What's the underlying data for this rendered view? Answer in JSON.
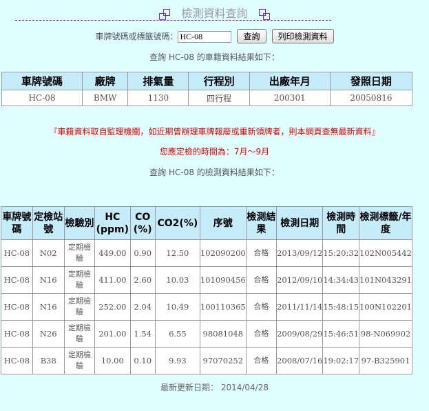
{
  "title": "檢測資料查詢",
  "accent_color": "#7722ee",
  "form": {
    "label": "車牌號碼或標籤號碼：",
    "input_value": "HC-08",
    "query_button": "查詢",
    "print_button": "列印檢測資料"
  },
  "registry_caption": "查詢 HC-08 的車籍資料結果如下：",
  "registry": {
    "headers": [
      "車牌號碼",
      "廠牌",
      "排氣量",
      "行程別",
      "出廠年月",
      "發照日期"
    ],
    "row": [
      "HC-08",
      "BMW",
      "1130",
      "四行程",
      "200301",
      "20050816"
    ]
  },
  "notice": "『車籍資料取自監理機關，如近期曾辦理車牌報廢或重新領牌者，則本網頁查無最新資料』",
  "due": "您應定檢的時間為：7月～9月",
  "inspection_caption": "查詢 HC-08 的檢測資料結果如下：",
  "inspection": {
    "headers": [
      "車牌號碼",
      "定檢站號",
      "檢驗別",
      "HC (ppm)",
      "CO (%)",
      "CO2(%)",
      "序號",
      "檢測結果",
      "檢測日期",
      "檢測時間",
      "檢測標籤/年度"
    ],
    "rows": [
      [
        "HC-08",
        "N02",
        "定期檢驗",
        "449.00",
        "0.90",
        "12.50",
        "102090200",
        "合格",
        "2013/09/12",
        "15:20:32",
        "102N005442"
      ],
      [
        "HC-08",
        "N16",
        "定期檢驗",
        "411.00",
        "2.60",
        "10.03",
        "101090456",
        "合格",
        "2012/09/10",
        "14:34:43",
        "101N043291"
      ],
      [
        "HC-08",
        "N16",
        "定期檢驗",
        "252.00",
        "2.04",
        "10.49",
        "100110365",
        "合格",
        "2011/11/14",
        "15:48:15",
        "100N102201"
      ],
      [
        "HC-08",
        "N26",
        "定期檢驗",
        "201.00",
        "1.54",
        "6.55",
        "98081048",
        "合格",
        "2009/08/29",
        "15:46:51",
        "98-N069902"
      ],
      [
        "HC-08",
        "B38",
        "定期檢驗",
        "10.00",
        "0.10",
        "9.93",
        "97070252",
        "合格",
        "2008/07/16",
        "19:02:17",
        "97-B325901"
      ]
    ]
  },
  "footer": "最新更新日期： 2014/04/28"
}
